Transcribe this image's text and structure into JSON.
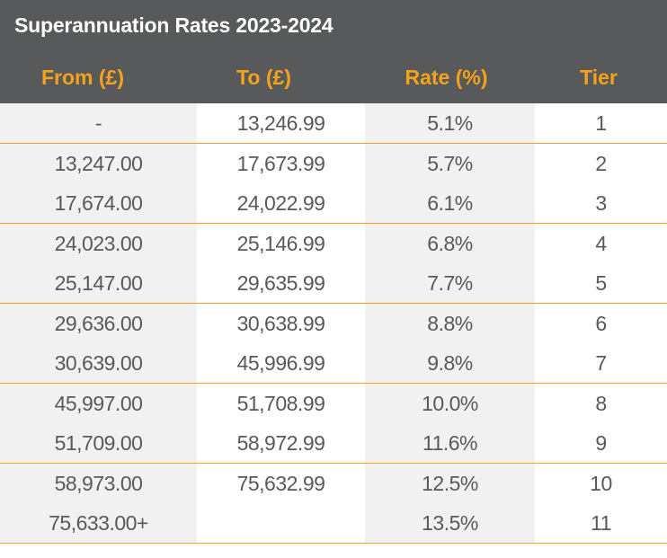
{
  "title": "Superannuation Rates 2023-2024",
  "columns": {
    "from": "From (£)",
    "to": "To (£)",
    "rate": "Rate (%)",
    "tier": "Tier"
  },
  "rows": [
    {
      "from": "-",
      "to": "13,246.99",
      "rate": "5.1%",
      "tier": "1"
    },
    {
      "from": "13,247.00",
      "to": "17,673.99",
      "rate": "5.7%",
      "tier": "2"
    },
    {
      "from": "17,674.00",
      "to": "24,022.99",
      "rate": "6.1%",
      "tier": "3"
    },
    {
      "from": "24,023.00",
      "to": "25,146.99",
      "rate": "6.8%",
      "tier": "4"
    },
    {
      "from": "25,147.00",
      "to": "29,635.99",
      "rate": "7.7%",
      "tier": "5"
    },
    {
      "from": "29,636.00",
      "to": "30,638.99",
      "rate": "8.8%",
      "tier": "6"
    },
    {
      "from": "30,639.00",
      "to": "45,996.99",
      "rate": "9.8%",
      "tier": "7"
    },
    {
      "from": "45,997.00",
      "to": "51,708.99",
      "rate": "10.0%",
      "tier": "8"
    },
    {
      "from": "51,709.00",
      "to": "58,972.99",
      "rate": "11.6%",
      "tier": "9"
    },
    {
      "from": "58,973.00",
      "to": "75,632.99",
      "rate": "12.5%",
      "tier": "10"
    },
    {
      "from": "75,633.00+",
      "to": "",
      "rate": "13.5%",
      "tier": "11"
    }
  ],
  "colors": {
    "header_bg": "#58595b",
    "accent": "#f7a21b",
    "text": "#58595b",
    "shaded_cell": "#f1f1f1"
  }
}
